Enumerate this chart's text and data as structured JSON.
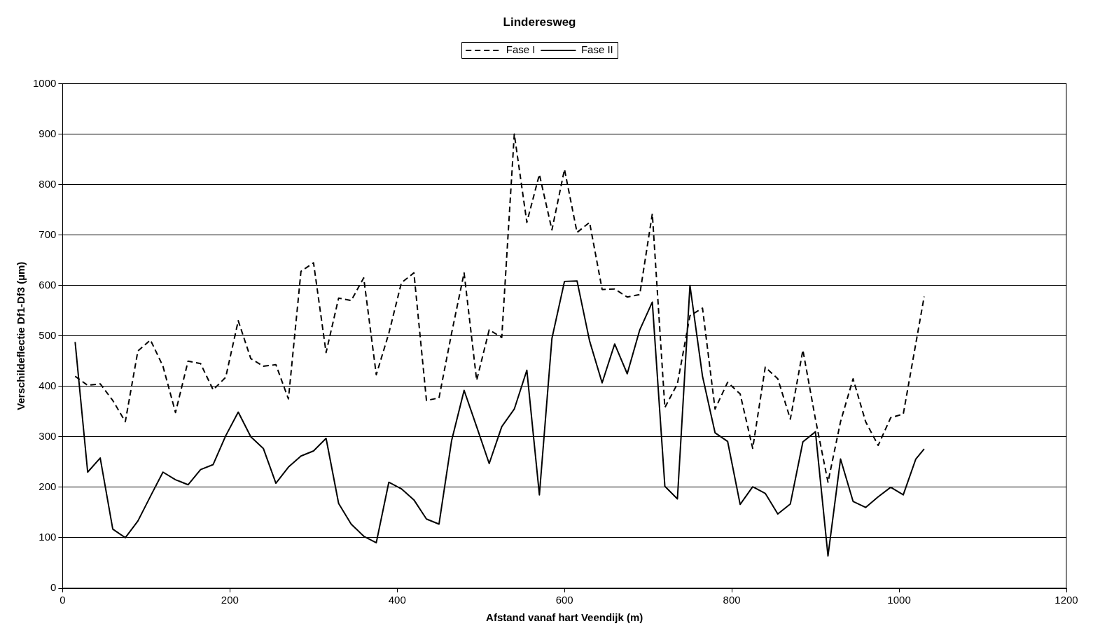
{
  "chart_data": {
    "type": "line",
    "title": "Linderesweg",
    "xlabel": "Afstand vanaf hart Veendijk (m)",
    "ylabel": "Verschildeflectie Df1-Df3 (µm)",
    "xlim": [
      0,
      1200
    ],
    "xticks": [
      0,
      200,
      400,
      600,
      800,
      1000,
      1200
    ],
    "ylim": [
      0,
      1000
    ],
    "yticks": [
      0,
      100,
      200,
      300,
      400,
      500,
      600,
      700,
      800,
      900,
      1000
    ],
    "grid": "y",
    "legend": "top",
    "marker": "none",
    "series": [
      {
        "name": "Fase I",
        "color": "#000000",
        "line_style": "dashed",
        "x": [
          15,
          30,
          45,
          60,
          75,
          90,
          105,
          120,
          135,
          150,
          165,
          180,
          195,
          210,
          225,
          240,
          255,
          270,
          285,
          300,
          315,
          330,
          345,
          360,
          375,
          390,
          405,
          420,
          435,
          450,
          465,
          480,
          495,
          510,
          525,
          540,
          555,
          570,
          585,
          600,
          615,
          630,
          645,
          660,
          675,
          690,
          705,
          720,
          735,
          750,
          765,
          780,
          795,
          810,
          825,
          840,
          855,
          870,
          885,
          900,
          915,
          930,
          945,
          960,
          975,
          990,
          1005,
          1030
        ],
        "values": [
          420,
          402,
          405,
          372,
          330,
          470,
          492,
          440,
          348,
          450,
          445,
          393,
          418,
          530,
          455,
          440,
          443,
          375,
          628,
          645,
          467,
          575,
          570,
          615,
          423,
          505,
          605,
          625,
          372,
          377,
          505,
          625,
          412,
          512,
          497,
          900,
          725,
          820,
          710,
          830,
          705,
          725,
          592,
          593,
          577,
          582,
          742,
          358,
          405,
          540,
          555,
          355,
          408,
          385,
          277,
          438,
          415,
          335,
          472,
          335,
          210,
          330,
          415,
          330,
          283,
          338,
          345,
          578
        ]
      },
      {
        "name": "Fase II",
        "color": "#000000",
        "line_style": "solid",
        "x": [
          15,
          30,
          45,
          60,
          75,
          90,
          105,
          120,
          135,
          150,
          165,
          180,
          195,
          210,
          225,
          240,
          255,
          270,
          285,
          300,
          315,
          330,
          345,
          360,
          375,
          390,
          405,
          420,
          435,
          450,
          465,
          480,
          495,
          510,
          525,
          540,
          555,
          570,
          585,
          600,
          615,
          630,
          645,
          660,
          675,
          690,
          705,
          720,
          735,
          750,
          765,
          780,
          795,
          810,
          825,
          840,
          855,
          870,
          885,
          900,
          915,
          930,
          945,
          960,
          975,
          990,
          1005,
          1020,
          1030
        ],
        "values": [
          488,
          230,
          258,
          117,
          100,
          133,
          182,
          230,
          215,
          205,
          235,
          245,
          302,
          349,
          300,
          277,
          208,
          240,
          262,
          272,
          297,
          168,
          127,
          103,
          90,
          210,
          197,
          175,
          137,
          127,
          292,
          392,
          320,
          247,
          320,
          355,
          432,
          185,
          495,
          608,
          609,
          490,
          407,
          484,
          425,
          512,
          567,
          202,
          177,
          600,
          420,
          308,
          291,
          166,
          201,
          188,
          147,
          167,
          290,
          310,
          64,
          256,
          172,
          160,
          181,
          200,
          185,
          256,
          276
        ]
      }
    ]
  }
}
